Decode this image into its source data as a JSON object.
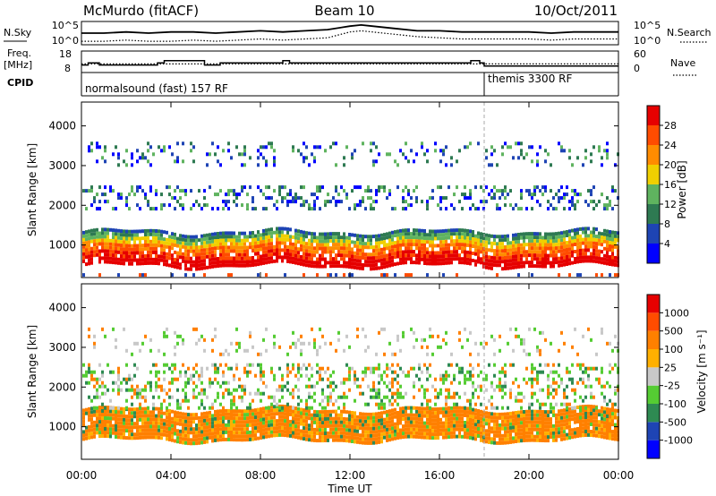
{
  "header": {
    "title_left": "McMurdo (fitACF)",
    "title_center": "Beam 10",
    "title_right": "10/Oct/2011"
  },
  "chart_data": [
    {
      "type": "line",
      "panel": "noise",
      "left_label": "N.Sky",
      "right_label": "N.Search",
      "left_ticks": [
        "10^5",
        "10^0"
      ],
      "right_ticks": [
        "10^5",
        "10^0"
      ],
      "series": [
        {
          "name": "N.Sky",
          "style": "solid",
          "x": [
            0,
            1,
            2,
            3,
            4,
            5,
            6,
            7,
            8,
            9,
            10,
            11,
            12,
            12.5,
            13,
            14,
            15,
            16,
            17,
            18,
            19,
            20,
            21,
            22,
            23,
            24
          ],
          "y": [
            0.5,
            0.5,
            0.55,
            0.5,
            0.55,
            0.55,
            0.5,
            0.55,
            0.6,
            0.55,
            0.6,
            0.65,
            0.8,
            0.85,
            0.8,
            0.7,
            0.6,
            0.6,
            0.55,
            0.55,
            0.55,
            0.55,
            0.5,
            0.55,
            0.55,
            0.55
          ]
        },
        {
          "name": "N.Search",
          "style": "dotted",
          "x": [
            0,
            1,
            2,
            3,
            4,
            5,
            6,
            7,
            8,
            9,
            10,
            11,
            12,
            12.5,
            13,
            14,
            15,
            16,
            17,
            18,
            19,
            20,
            21,
            22,
            23,
            24
          ],
          "y": [
            0.15,
            0.15,
            0.2,
            0.15,
            0.15,
            0.2,
            0.15,
            0.2,
            0.25,
            0.2,
            0.25,
            0.3,
            0.55,
            0.6,
            0.55,
            0.45,
            0.35,
            0.3,
            0.25,
            0.25,
            0.25,
            0.25,
            0.2,
            0.25,
            0.25,
            0.25
          ]
        }
      ]
    },
    {
      "type": "line",
      "panel": "frequency",
      "left_label_1": "Freq.",
      "left_label_2": "[MHz]",
      "right_label": "Nave",
      "left_ticks": [
        "18",
        "8"
      ],
      "right_ticks": [
        "60",
        "0"
      ],
      "series": [
        {
          "name": "Freq.",
          "style": "solid",
          "x": [
            0,
            0.3,
            0.3,
            0.8,
            0.8,
            3.4,
            3.4,
            3.7,
            3.7,
            5.5,
            5.5,
            6.2,
            6.2,
            9.0,
            9.0,
            9.3,
            9.3,
            17.4,
            17.4,
            17.8,
            17.8,
            18.0,
            18.0,
            24
          ],
          "y": [
            11.5,
            11.5,
            12.5,
            12.5,
            11.5,
            11.5,
            12.5,
            12.5,
            13.5,
            13.5,
            11.5,
            11.5,
            12.5,
            12.5,
            13.5,
            13.5,
            12.5,
            12.5,
            13.5,
            13.5,
            12.5,
            12.5,
            11,
            11
          ]
        },
        {
          "name": "Nave",
          "style": "dotted",
          "x": [
            0,
            24
          ],
          "y": [
            24,
            24
          ]
        }
      ]
    },
    {
      "type": "table",
      "panel": "cpid",
      "label": "CPID",
      "segments": [
        {
          "start": 0,
          "end": 18.0,
          "text": "normalsound (fast) 157 RF"
        },
        {
          "start": 18.0,
          "end": 24,
          "text": "themis 3300 RF"
        }
      ]
    },
    {
      "type": "heatmap",
      "panel": "power",
      "ylabel": "Slant Range [km]",
      "ylim": [
        180,
        4600
      ],
      "yticks": [
        1000,
        2000,
        3000,
        4000
      ],
      "colorbar": {
        "label": "Power [dB]",
        "ticks": [
          "28",
          "24",
          "20",
          "16",
          "12",
          "8",
          "4"
        ],
        "colors": [
          "#0000ff",
          "#1e44b4",
          "#2e7a52",
          "#5fb35f",
          "#f0d000",
          "#ff8c00",
          "#ff4c00",
          "#e60000"
        ]
      },
      "bands": [
        {
          "range": [
            200,
            290
          ],
          "density": 0.25,
          "level": "low"
        },
        {
          "range": [
            500,
            1350
          ],
          "density": 0.9,
          "level": "strong"
        },
        {
          "range": [
            1900,
            2500
          ],
          "density": 0.3,
          "level": "weak"
        },
        {
          "range": [
            3000,
            3600
          ],
          "density": 0.15,
          "level": "weak"
        }
      ]
    },
    {
      "type": "heatmap",
      "panel": "velocity",
      "ylabel": "Slant Range [km]",
      "ylim": [
        180,
        4600
      ],
      "yticks": [
        1000,
        2000,
        3000,
        4000
      ],
      "colorbar": {
        "label": "Velocity [m s⁻¹]",
        "ticks": [
          "1000",
          "500",
          "100",
          "25",
          "-25",
          "-100",
          "-500",
          "-1000"
        ],
        "colors": [
          "#0000ff",
          "#1e44b4",
          "#2e8a52",
          "#55cc33",
          "#c8c8c8",
          "#ffb000",
          "#ff8000",
          "#ff4c00",
          "#e60000"
        ]
      },
      "bands": [
        {
          "range": [
            700,
            1450
          ],
          "density": 0.95,
          "level": "orange"
        },
        {
          "range": [
            1500,
            2600
          ],
          "density": 0.3,
          "level": "mixed"
        },
        {
          "range": [
            2800,
            3500
          ],
          "density": 0.12,
          "level": "weak"
        }
      ]
    }
  ],
  "x_axis": {
    "ticks": [
      "00:00",
      "04:00",
      "08:00",
      "12:00",
      "16:00",
      "20:00",
      "00:00"
    ],
    "label": "Time UT"
  },
  "cpid_change_hour": 18.0
}
